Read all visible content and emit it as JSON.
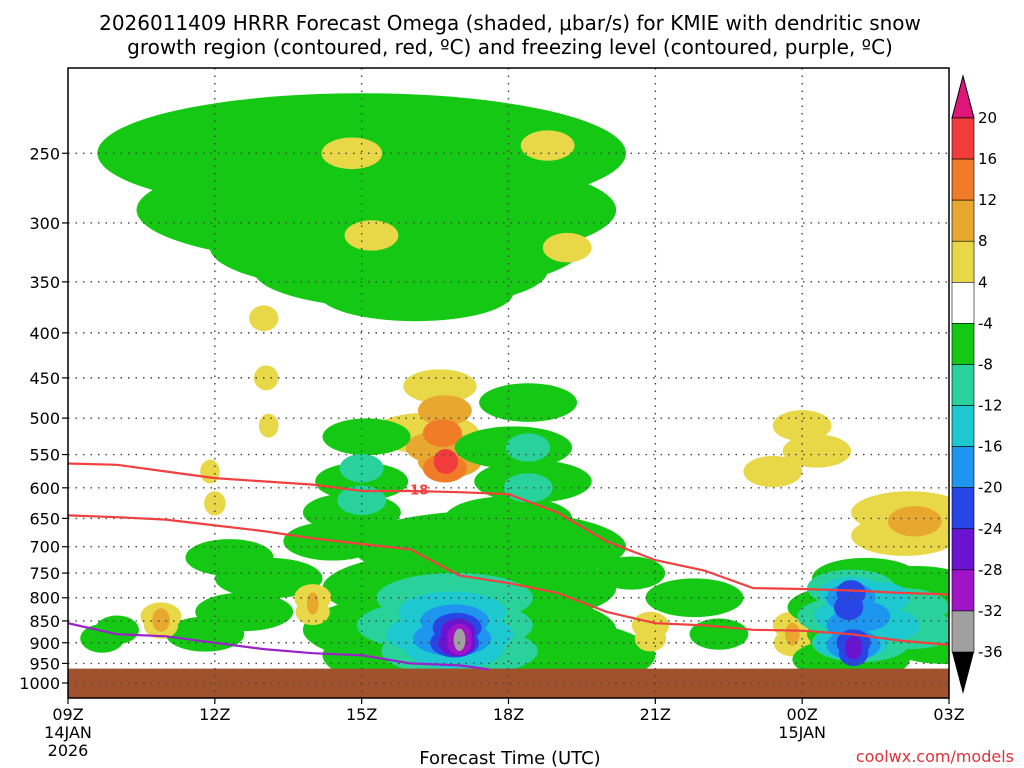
{
  "chart_data": {
    "type": "heatmap",
    "title_line1": "2026011409 HRRR Forecast Omega (shaded, μbar/s) for KMIE with dendritic snow",
    "title_line2": "growth region (contoured, red, ºC) and freezing level (contoured, purple, ºC)",
    "xlabel": "Forecast Time (UTC)",
    "credit": "coolwx.com/models",
    "x_range_hours": [
      0,
      18
    ],
    "y_axis": {
      "scale": "log-pressure",
      "range_hPa": [
        200,
        1040
      ],
      "ticks": [
        250,
        300,
        350,
        400,
        450,
        500,
        550,
        600,
        650,
        700,
        750,
        800,
        850,
        900,
        950,
        1000
      ]
    },
    "x_ticks": [
      {
        "hour": 0,
        "label": "09Z",
        "sub1": "14JAN",
        "sub2": "2026"
      },
      {
        "hour": 3,
        "label": "12Z",
        "sub1": "",
        "sub2": ""
      },
      {
        "hour": 6,
        "label": "15Z",
        "sub1": "",
        "sub2": ""
      },
      {
        "hour": 9,
        "label": "18Z",
        "sub1": "",
        "sub2": ""
      },
      {
        "hour": 12,
        "label": "21Z",
        "sub1": "",
        "sub2": ""
      },
      {
        "hour": 15,
        "label": "00Z",
        "sub1": "15JAN",
        "sub2": ""
      },
      {
        "hour": 18,
        "label": "03Z",
        "sub1": "",
        "sub2": ""
      }
    ],
    "colorbar": {
      "levels": [
        20,
        16,
        12,
        8,
        4,
        -4,
        -8,
        -12,
        -16,
        -20,
        -24,
        -28,
        -32,
        -36
      ],
      "colors": [
        "#f03c3c",
        "#f07c28",
        "#e8a830",
        "#e8d848",
        "#ffffff",
        "#14c814",
        "#28d29a",
        "#1ec8d0",
        "#1e96f0",
        "#2846e6",
        "#6a14d2",
        "#a014c8",
        "#a0a0a0"
      ],
      "top_arrow_color": "#e0157a",
      "bottom_arrow_color": "#000000"
    },
    "contour_labels": [
      {
        "text": "-18",
        "hour": 7.1,
        "p": 603
      }
    ],
    "ground_surface_hPa": 963,
    "ground_color": "#a0522d",
    "omega_regions": [
      {
        "v": -4,
        "c": [
          [
            6.0,
            5.4,
            250
          ],
          [
            6.3,
            4.9,
            290
          ],
          [
            6.7,
            3.8,
            320
          ],
          [
            6.8,
            3.0,
            340
          ],
          [
            7.1,
            2.0,
            360
          ],
          [
            7.8,
            1.4,
            250
          ],
          [
            8.3,
            0.7,
            320
          ],
          [
            8.6,
            0.6,
            345
          ]
        ]
      },
      {
        "v": 4,
        "c": [
          [
            5.8,
            0.62,
            250
          ],
          [
            6.2,
            0.55,
            310
          ]
        ]
      },
      {
        "v": 4,
        "c": [
          [
            9.8,
            0.55,
            245
          ],
          [
            10.2,
            0.5,
            320
          ]
        ]
      },
      {
        "v": 4,
        "c": [
          [
            4.0,
            0.3,
            385
          ],
          [
            4.05,
            0.25,
            450
          ],
          [
            4.1,
            0.2,
            510
          ]
        ]
      },
      {
        "v": 4,
        "c": [
          [
            2.9,
            0.2,
            575
          ],
          [
            3.0,
            0.22,
            625
          ]
        ]
      },
      {
        "v": 4,
        "c": [
          [
            7.6,
            0.75,
            460
          ],
          [
            7.3,
            1.1,
            520
          ],
          [
            8.0,
            0.9,
            540
          ]
        ]
      },
      {
        "v": 8,
        "c": [
          [
            7.7,
            0.55,
            490
          ],
          [
            7.6,
            0.7,
            540
          ],
          [
            7.8,
            0.65,
            560
          ]
        ]
      },
      {
        "v": 12,
        "c": [
          [
            7.65,
            0.4,
            520
          ],
          [
            7.7,
            0.45,
            570
          ]
        ]
      },
      {
        "v": 16,
        "c": [
          [
            7.72,
            0.25,
            560
          ]
        ]
      },
      {
        "v": -4,
        "c": [
          [
            6.1,
            0.9,
            525
          ],
          [
            6.0,
            0.95,
            590
          ],
          [
            5.8,
            1.0,
            640
          ],
          [
            5.4,
            1.0,
            690
          ]
        ]
      },
      {
        "v": -8,
        "c": [
          [
            6.0,
            0.45,
            570
          ],
          [
            6.0,
            0.5,
            620
          ]
        ]
      },
      {
        "v": -4,
        "c": [
          [
            9.4,
            1.0,
            480
          ],
          [
            9.1,
            1.2,
            540
          ],
          [
            9.5,
            1.2,
            590
          ],
          [
            9.0,
            1.3,
            650
          ]
        ]
      },
      {
        "v": -8,
        "c": [
          [
            9.4,
            0.45,
            540
          ],
          [
            9.4,
            0.5,
            600
          ]
        ]
      },
      {
        "v": -4,
        "c": [
          [
            8.6,
            2.8,
            700
          ],
          [
            8.2,
            3.0,
            780
          ],
          [
            8.0,
            3.2,
            870
          ],
          [
            8.6,
            3.4,
            930
          ],
          [
            10.4,
            0.9,
            940
          ],
          [
            11.5,
            0.7,
            750
          ],
          [
            12.8,
            1.0,
            800
          ],
          [
            13.3,
            0.6,
            880
          ]
        ]
      },
      {
        "v": -8,
        "c": [
          [
            7.9,
            1.6,
            800
          ],
          [
            7.7,
            1.8,
            860
          ],
          [
            8.0,
            1.6,
            920
          ]
        ]
      },
      {
        "v": -12,
        "c": [
          [
            7.85,
            1.1,
            830
          ],
          [
            7.8,
            1.3,
            880
          ],
          [
            7.9,
            1.0,
            915
          ]
        ]
      },
      {
        "v": -16,
        "c": [
          [
            7.9,
            0.7,
            850
          ],
          [
            7.85,
            0.8,
            890
          ]
        ]
      },
      {
        "v": -20,
        "c": [
          [
            7.95,
            0.5,
            865
          ],
          [
            7.9,
            0.5,
            900
          ]
        ]
      },
      {
        "v": -24,
        "c": [
          [
            7.97,
            0.35,
            875
          ],
          [
            7.95,
            0.38,
            900
          ]
        ]
      },
      {
        "v": -28,
        "c": [
          [
            8.0,
            0.25,
            885
          ],
          [
            8.0,
            0.25,
            900
          ]
        ]
      },
      {
        "v": -32,
        "c": [
          [
            8.0,
            0.12,
            893
          ]
        ]
      },
      {
        "v": -4,
        "c": [
          [
            3.3,
            0.9,
            720
          ],
          [
            4.1,
            1.1,
            760
          ],
          [
            3.6,
            1.0,
            830
          ],
          [
            2.8,
            0.8,
            880
          ],
          [
            1.0,
            0.45,
            870
          ],
          [
            0.7,
            0.45,
            890
          ]
        ]
      },
      {
        "v": 4,
        "c": [
          [
            1.9,
            0.42,
            840
          ],
          [
            1.9,
            0.35,
            860
          ]
        ]
      },
      {
        "v": 8,
        "c": [
          [
            1.9,
            0.18,
            848
          ]
        ]
      },
      {
        "v": 4,
        "c": [
          [
            5.0,
            0.38,
            800
          ],
          [
            5.0,
            0.35,
            830
          ]
        ]
      },
      {
        "v": 8,
        "c": [
          [
            5.0,
            0.12,
            812
          ]
        ]
      },
      {
        "v": 4,
        "c": [
          [
            11.9,
            0.38,
            860
          ],
          [
            11.9,
            0.32,
            890
          ]
        ]
      },
      {
        "v": 4,
        "c": [
          [
            14.8,
            0.4,
            860
          ],
          [
            14.8,
            0.38,
            900
          ]
        ]
      },
      {
        "v": 8,
        "c": [
          [
            14.8,
            0.15,
            880
          ]
        ]
      },
      {
        "v": 4,
        "c": [
          [
            15.0,
            0.6,
            510
          ],
          [
            15.3,
            0.7,
            545
          ],
          [
            14.4,
            0.6,
            575
          ]
        ]
      },
      {
        "v": 4,
        "c": [
          [
            17.2,
            1.2,
            640
          ],
          [
            17.4,
            0.9,
            660
          ],
          [
            17.1,
            1.1,
            680
          ]
        ]
      },
      {
        "v": 8,
        "c": [
          [
            17.3,
            0.55,
            655
          ]
        ]
      },
      {
        "v": -4,
        "c": [
          [
            16.3,
            1.1,
            760
          ],
          [
            16.0,
            1.3,
            820
          ],
          [
            16.5,
            1.4,
            880
          ],
          [
            16.0,
            1.2,
            940
          ],
          [
            17.3,
            1.3,
            780
          ],
          [
            17.4,
            1.5,
            860
          ],
          [
            17.9,
            1.2,
            900
          ]
        ]
      },
      {
        "v": -8,
        "c": [
          [
            16.0,
            0.9,
            780
          ],
          [
            15.9,
            1.0,
            840
          ],
          [
            16.2,
            1.0,
            900
          ],
          [
            17.0,
            1.0,
            820
          ],
          [
            17.2,
            1.0,
            870
          ]
        ]
      },
      {
        "v": -12,
        "c": [
          [
            16.0,
            0.65,
            790
          ],
          [
            15.9,
            0.65,
            840
          ],
          [
            16.0,
            0.75,
            900
          ],
          [
            16.6,
            0.6,
            800
          ],
          [
            16.8,
            0.6,
            860
          ]
        ]
      },
      {
        "v": -16,
        "c": [
          [
            16.0,
            0.5,
            800
          ],
          [
            15.95,
            0.45,
            860
          ],
          [
            16.05,
            0.55,
            905
          ],
          [
            16.3,
            0.5,
            840
          ]
        ]
      },
      {
        "v": -20,
        "c": [
          [
            16.0,
            0.3,
            790
          ],
          [
            15.95,
            0.3,
            820
          ],
          [
            16.05,
            0.35,
            900
          ],
          [
            16.05,
            0.3,
            925
          ]
        ]
      },
      {
        "v": -24,
        "c": [
          [
            16.05,
            0.18,
            912
          ]
        ]
      }
    ],
    "dgz_lines": [
      {
        "hour": [
          0,
          1,
          2,
          3,
          4,
          5,
          6,
          7,
          8,
          9,
          10,
          11,
          12,
          13,
          14,
          15,
          16,
          17,
          18
        ],
        "p": [
          563,
          565,
          575,
          585,
          590,
          595,
          605,
          605,
          607,
          610,
          640,
          690,
          725,
          745,
          780,
          782,
          785,
          790,
          793
        ]
      },
      {
        "hour": [
          0,
          1,
          2,
          3,
          4,
          5,
          6,
          7,
          8,
          9,
          10,
          11,
          12,
          13,
          14,
          15,
          16,
          17,
          18
        ],
        "p": [
          645,
          648,
          652,
          662,
          672,
          685,
          695,
          705,
          755,
          770,
          790,
          830,
          855,
          860,
          870,
          872,
          880,
          895,
          905
        ]
      }
    ],
    "freezing_line": {
      "hour": [
        0,
        1,
        2,
        3,
        4,
        5,
        6,
        7,
        8,
        8.6
      ],
      "p": [
        855,
        880,
        885,
        900,
        915,
        925,
        930,
        950,
        955,
        965
      ]
    }
  }
}
